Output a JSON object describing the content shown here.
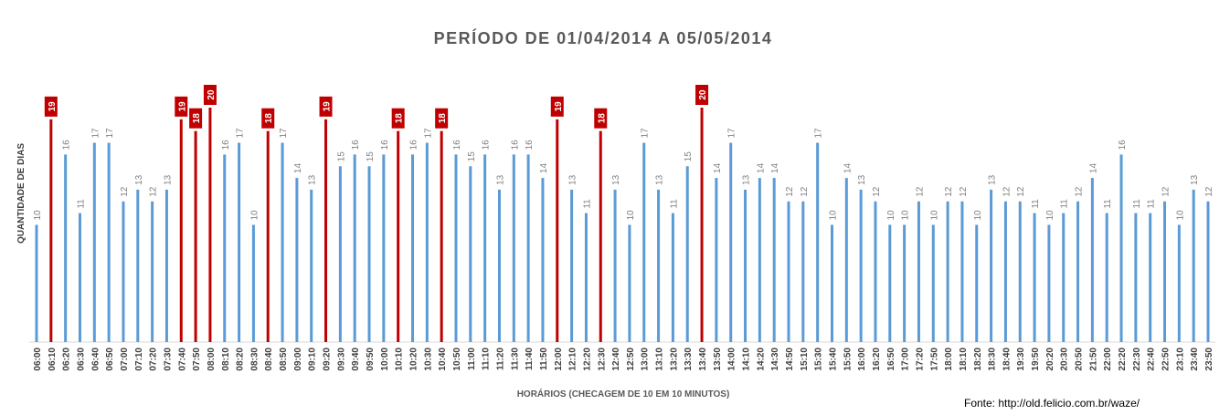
{
  "chart_data": {
    "type": "bar",
    "title": "PERÍODO DE 01/04/2014 A 05/05/2014",
    "y_label": "QUANTIDADE DE DIAS",
    "x_label": "HORÁRIOS (CHECAGEM DE 10 EM 10 MINUTOS)",
    "source": "Fonte: http://old.felicio.com.br/waze/",
    "categories": [
      "06:00",
      "06:10",
      "06:20",
      "06:30",
      "06:40",
      "06:50",
      "07:00",
      "07:10",
      "07:20",
      "07:30",
      "07:40",
      "07:50",
      "08:00",
      "08:10",
      "08:20",
      "08:30",
      "08:40",
      "08:50",
      "09:00",
      "09:10",
      "09:20",
      "09:30",
      "09:40",
      "09:50",
      "10:00",
      "10:10",
      "10:20",
      "10:30",
      "10:40",
      "10:50",
      "11:00",
      "11:10",
      "11:20",
      "11:30",
      "11:40",
      "11:50",
      "12:00",
      "12:10",
      "12:20",
      "12:30",
      "12:40",
      "12:50",
      "13:00",
      "13:10",
      "13:20",
      "13:30",
      "13:40",
      "13:50",
      "14:00",
      "14:10",
      "14:20",
      "14:30",
      "14:50",
      "15:10",
      "15:30",
      "15:40",
      "15:50",
      "16:00",
      "16:20",
      "16:50",
      "17:00",
      "17:20",
      "17:50",
      "18:00",
      "18:10",
      "18:20",
      "18:30",
      "18:40",
      "19:30",
      "19:50",
      "20:20",
      "20:30",
      "20:50",
      "21:50",
      "22:00",
      "22:20",
      "22:30",
      "22:40",
      "22:50",
      "23:10",
      "23:40",
      "23:50"
    ],
    "values": [
      10,
      19,
      16,
      11,
      17,
      17,
      12,
      13,
      12,
      13,
      19,
      18,
      20,
      16,
      17,
      10,
      18,
      17,
      14,
      13,
      19,
      15,
      16,
      15,
      16,
      18,
      16,
      17,
      18,
      16,
      15,
      16,
      13,
      16,
      16,
      14,
      19,
      13,
      11,
      18,
      13,
      10,
      17,
      13,
      11,
      15,
      20,
      14,
      17,
      13,
      14,
      14,
      12,
      12,
      17,
      10,
      14,
      13,
      12,
      10,
      10,
      12,
      10,
      12,
      12,
      10,
      13,
      12,
      12,
      11,
      10,
      11,
      12,
      14,
      11,
      16,
      11,
      11,
      12,
      10,
      13,
      12
    ],
    "colors": [
      "#5b9bd5",
      "#c00000",
      "#5b9bd5",
      "#5b9bd5",
      "#5b9bd5",
      "#5b9bd5",
      "#5b9bd5",
      "#5b9bd5",
      "#5b9bd5",
      "#5b9bd5",
      "#c00000",
      "#c00000",
      "#c00000",
      "#5b9bd5",
      "#5b9bd5",
      "#5b9bd5",
      "#c00000",
      "#5b9bd5",
      "#5b9bd5",
      "#5b9bd5",
      "#c00000",
      "#5b9bd5",
      "#5b9bd5",
      "#5b9bd5",
      "#5b9bd5",
      "#c00000",
      "#5b9bd5",
      "#5b9bd5",
      "#c00000",
      "#5b9bd5",
      "#5b9bd5",
      "#5b9bd5",
      "#5b9bd5",
      "#5b9bd5",
      "#5b9bd5",
      "#5b9bd5",
      "#c00000",
      "#5b9bd5",
      "#5b9bd5",
      "#c00000",
      "#5b9bd5",
      "#5b9bd5",
      "#5b9bd5",
      "#5b9bd5",
      "#5b9bd5",
      "#5b9bd5",
      "#c00000",
      "#5b9bd5",
      "#5b9bd5",
      "#5b9bd5",
      "#5b9bd5",
      "#5b9bd5",
      "#5b9bd5",
      "#5b9bd5",
      "#5b9bd5",
      "#5b9bd5",
      "#5b9bd5",
      "#5b9bd5",
      "#5b9bd5",
      "#5b9bd5",
      "#5b9bd5",
      "#5b9bd5",
      "#5b9bd5",
      "#5b9bd5",
      "#5b9bd5",
      "#5b9bd5",
      "#5b9bd5",
      "#5b9bd5",
      "#5b9bd5",
      "#5b9bd5",
      "#5b9bd5",
      "#5b9bd5",
      "#5b9bd5",
      "#5b9bd5",
      "#5b9bd5",
      "#5b9bd5",
      "#5b9bd5",
      "#5b9bd5",
      "#5b9bd5",
      "#5b9bd5",
      "#5b9bd5",
      "#5b9bd5"
    ],
    "ylim": [
      0,
      20
    ]
  }
}
